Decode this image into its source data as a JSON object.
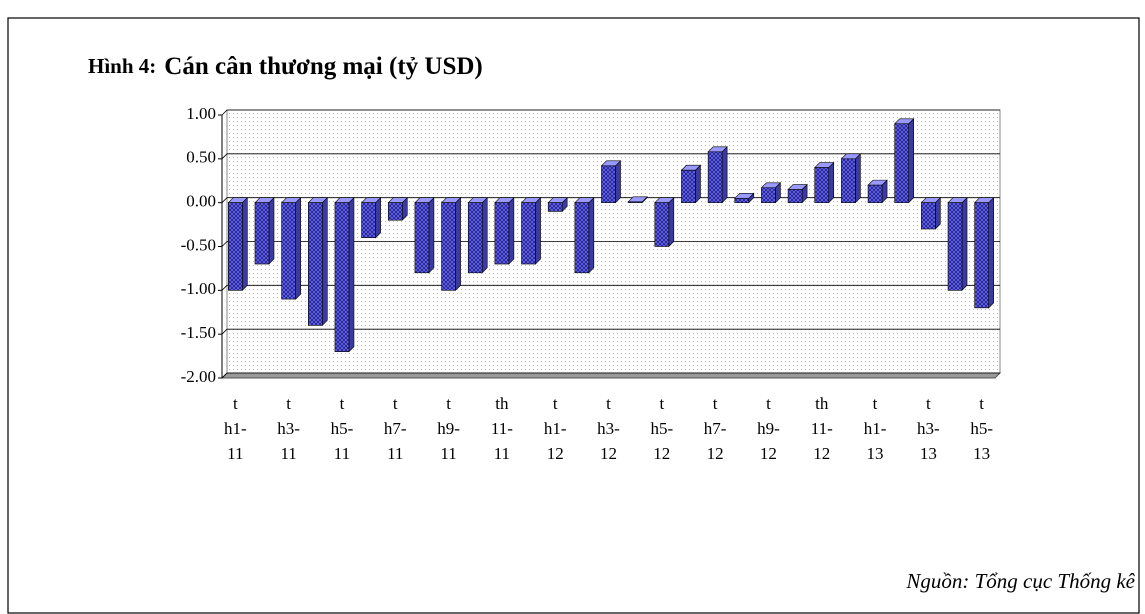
{
  "chart_data": {
    "type": "bar",
    "figure_label": "Hình 4:",
    "title": "Cán cân thương mại (tỷ USD)",
    "source": "Nguồn: Tổng cục Thống kê",
    "categories": [
      "th1-11",
      null,
      "th3-11",
      null,
      "th5-11",
      null,
      "th7-11",
      null,
      "th9-11",
      null,
      "th11-11",
      null,
      "th1-12",
      null,
      "th3-12",
      null,
      "th5-12",
      null,
      "th7-12",
      null,
      "th9-12",
      null,
      "th11-12",
      null,
      "th1-13",
      null,
      "th3-13",
      null,
      "th5-13"
    ],
    "values": [
      -1.0,
      -0.7,
      -1.1,
      -1.4,
      -1.7,
      -0.4,
      -0.2,
      -0.8,
      -1.0,
      -0.8,
      -0.7,
      -0.7,
      -0.1,
      -0.8,
      0.42,
      0.01,
      -0.5,
      0.37,
      0.58,
      0.05,
      0.17,
      0.15,
      0.4,
      0.5,
      0.2,
      0.9,
      -0.3,
      -1.0,
      -1.2
    ],
    "color": "#6666ff",
    "ylim": [
      -2,
      1
    ],
    "yticks": [
      {
        "value": -2,
        "label": "-2.00"
      },
      {
        "value": -1.5,
        "label": "-1.50"
      },
      {
        "value": -1,
        "label": "-1.00"
      },
      {
        "value": -0.5,
        "label": "-0.50"
      },
      {
        "value": 0,
        "label": "0.00"
      },
      {
        "value": 0.5,
        "label": "0.50"
      },
      {
        "value": 1,
        "label": "1.00"
      }
    ],
    "grid": true
  }
}
